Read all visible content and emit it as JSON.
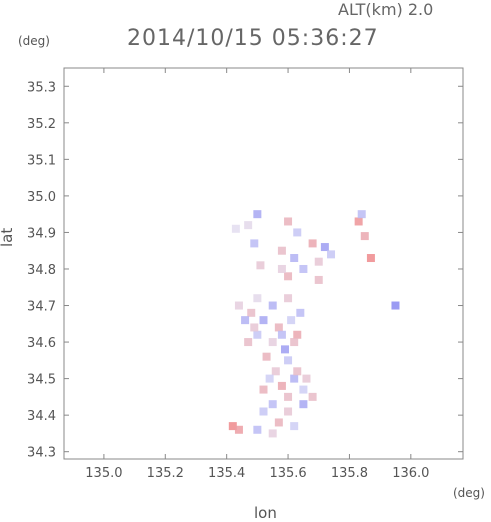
{
  "header": {
    "datetime": "2014/10/15 05:36:27",
    "altitude": "ALT(km) 2.0"
  },
  "axes": {
    "y_unit": "(deg)",
    "x_unit": "(deg)",
    "x_label": "lon",
    "y_label": "lat"
  },
  "chart_data": {
    "type": "scatter",
    "title": "2014/10/15 05:36:27",
    "xlabel": "lon",
    "ylabel": "lat",
    "xlim": [
      134.87,
      136.17
    ],
    "ylim": [
      34.28,
      35.35
    ],
    "x_ticks": [
      135.0,
      135.2,
      135.4,
      135.6,
      135.8,
      136.0
    ],
    "y_ticks": [
      34.3,
      34.4,
      34.5,
      34.6,
      34.7,
      34.8,
      34.9,
      35.0,
      35.1,
      35.2,
      35.3
    ],
    "grid": false,
    "colors": {
      "positive": "#f08080",
      "negative": "#8080f0",
      "neutral": "#dcdcf4"
    },
    "series": [
      {
        "values": [
          {
            "x": 135.47,
            "y": 34.92,
            "v": 0.1
          },
          {
            "x": 135.5,
            "y": 34.95,
            "v": -0.6
          },
          {
            "x": 135.43,
            "y": 34.91,
            "v": 0.05
          },
          {
            "x": 135.6,
            "y": 34.93,
            "v": 0.5
          },
          {
            "x": 135.63,
            "y": 34.9,
            "v": -0.3
          },
          {
            "x": 135.58,
            "y": 34.85,
            "v": 0.4
          },
          {
            "x": 135.62,
            "y": 34.83,
            "v": -0.5
          },
          {
            "x": 135.68,
            "y": 34.87,
            "v": 0.6
          },
          {
            "x": 135.72,
            "y": 34.86,
            "v": -0.7
          },
          {
            "x": 135.7,
            "y": 34.82,
            "v": 0.3
          },
          {
            "x": 135.65,
            "y": 34.8,
            "v": -0.4
          },
          {
            "x": 135.6,
            "y": 34.78,
            "v": 0.5
          },
          {
            "x": 135.58,
            "y": 34.8,
            "v": 0.2
          },
          {
            "x": 135.74,
            "y": 34.84,
            "v": -0.3
          },
          {
            "x": 135.7,
            "y": 34.77,
            "v": 0.4
          },
          {
            "x": 135.83,
            "y": 34.93,
            "v": 0.8
          },
          {
            "x": 135.85,
            "y": 34.89,
            "v": 0.6
          },
          {
            "x": 135.84,
            "y": 34.95,
            "v": -0.4
          },
          {
            "x": 135.87,
            "y": 34.83,
            "v": 0.9
          },
          {
            "x": 135.95,
            "y": 34.7,
            "v": -0.9
          },
          {
            "x": 135.49,
            "y": 34.87,
            "v": -0.4
          },
          {
            "x": 135.51,
            "y": 34.81,
            "v": 0.3
          },
          {
            "x": 135.44,
            "y": 34.7,
            "v": 0.2
          },
          {
            "x": 135.5,
            "y": 34.72,
            "v": 0.1
          },
          {
            "x": 135.55,
            "y": 34.7,
            "v": -0.5
          },
          {
            "x": 135.6,
            "y": 34.72,
            "v": 0.3
          },
          {
            "x": 135.64,
            "y": 34.68,
            "v": -0.4
          },
          {
            "x": 135.48,
            "y": 34.68,
            "v": 0.4
          },
          {
            "x": 135.52,
            "y": 34.66,
            "v": -0.6
          },
          {
            "x": 135.57,
            "y": 34.64,
            "v": 0.5
          },
          {
            "x": 135.61,
            "y": 34.66,
            "v": -0.2
          },
          {
            "x": 135.63,
            "y": 34.62,
            "v": 0.6
          },
          {
            "x": 135.5,
            "y": 34.62,
            "v": -0.3
          },
          {
            "x": 135.55,
            "y": 34.6,
            "v": 0.2
          },
          {
            "x": 135.59,
            "y": 34.58,
            "v": -0.7
          },
          {
            "x": 135.47,
            "y": 34.6,
            "v": 0.4
          },
          {
            "x": 135.53,
            "y": 34.56,
            "v": 0.5
          },
          {
            "x": 135.6,
            "y": 34.55,
            "v": -0.3
          },
          {
            "x": 135.56,
            "y": 34.52,
            "v": 0.3
          },
          {
            "x": 135.62,
            "y": 34.5,
            "v": -0.5
          },
          {
            "x": 135.58,
            "y": 34.48,
            "v": 0.6
          },
          {
            "x": 135.65,
            "y": 34.47,
            "v": -0.2
          },
          {
            "x": 135.6,
            "y": 34.45,
            "v": 0.4
          },
          {
            "x": 135.52,
            "y": 34.47,
            "v": 0.5
          },
          {
            "x": 135.55,
            "y": 34.43,
            "v": -0.4
          },
          {
            "x": 135.6,
            "y": 34.41,
            "v": 0.3
          },
          {
            "x": 135.65,
            "y": 34.43,
            "v": -0.6
          },
          {
            "x": 135.68,
            "y": 34.45,
            "v": 0.4
          },
          {
            "x": 135.52,
            "y": 34.41,
            "v": -0.3
          },
          {
            "x": 135.57,
            "y": 34.38,
            "v": 0.5
          },
          {
            "x": 135.62,
            "y": 34.37,
            "v": -0.2
          },
          {
            "x": 135.55,
            "y": 34.35,
            "v": 0.2
          },
          {
            "x": 135.5,
            "y": 34.36,
            "v": -0.4
          },
          {
            "x": 135.42,
            "y": 34.37,
            "v": 0.9
          },
          {
            "x": 135.44,
            "y": 34.36,
            "v": 0.7
          },
          {
            "x": 135.63,
            "y": 34.52,
            "v": 0.4
          },
          {
            "x": 135.66,
            "y": 34.5,
            "v": 0.3
          },
          {
            "x": 135.54,
            "y": 34.5,
            "v": -0.2
          },
          {
            "x": 135.49,
            "y": 34.64,
            "v": 0.3
          },
          {
            "x": 135.58,
            "y": 34.62,
            "v": -0.4
          },
          {
            "x": 135.62,
            "y": 34.6,
            "v": 0.4
          },
          {
            "x": 135.46,
            "y": 34.66,
            "v": -0.5
          }
        ]
      }
    ]
  }
}
